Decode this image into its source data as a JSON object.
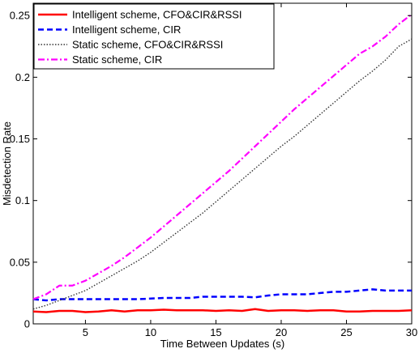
{
  "chart_data": {
    "type": "line",
    "xlabel": "Time Between Updates (s)",
    "ylabel": "Misdetection Rate",
    "xlim": [
      1,
      30
    ],
    "ylim": [
      0,
      0.26
    ],
    "xticks": [
      5,
      10,
      15,
      20,
      25,
      30
    ],
    "yticks": [
      0,
      0.05,
      0.1,
      0.15,
      0.2,
      0.25
    ],
    "xtick_labels": [
      "5",
      "10",
      "15",
      "20",
      "25",
      "30"
    ],
    "ytick_labels": [
      "0",
      "0.05",
      "0.1",
      "0.15",
      "0.2",
      "0.25"
    ],
    "grid": false,
    "legend_position": "top-left",
    "x": [
      1,
      2,
      3,
      4,
      5,
      6,
      7,
      8,
      9,
      10,
      11,
      12,
      13,
      14,
      15,
      16,
      17,
      18,
      19,
      20,
      21,
      22,
      23,
      24,
      25,
      26,
      27,
      28,
      29,
      30
    ],
    "series": [
      {
        "name": "Intelligent scheme, CFO&CIR&RSSI",
        "color": "#ff0000",
        "style": "solid",
        "values": [
          0.01,
          0.0095,
          0.0105,
          0.0105,
          0.0095,
          0.01,
          0.011,
          0.01,
          0.011,
          0.011,
          0.0115,
          0.011,
          0.011,
          0.011,
          0.0105,
          0.011,
          0.0105,
          0.012,
          0.0105,
          0.011,
          0.011,
          0.0105,
          0.011,
          0.011,
          0.01,
          0.01,
          0.0105,
          0.0105,
          0.0105,
          0.011
        ]
      },
      {
        "name": "Intelligent scheme, CIR",
        "color": "#0000ff",
        "style": "dashed",
        "values": [
          0.02,
          0.019,
          0.02,
          0.02,
          0.02,
          0.02,
          0.02,
          0.02,
          0.02,
          0.0205,
          0.021,
          0.021,
          0.021,
          0.022,
          0.022,
          0.022,
          0.022,
          0.0215,
          0.023,
          0.024,
          0.024,
          0.024,
          0.025,
          0.026,
          0.026,
          0.027,
          0.028,
          0.027,
          0.027,
          0.027
        ]
      },
      {
        "name": "Static scheme, CFO&CIR&RSSI",
        "color": "#333333",
        "style": "dotted",
        "values": [
          0.012,
          0.015,
          0.019,
          0.023,
          0.027,
          0.033,
          0.039,
          0.045,
          0.051,
          0.058,
          0.066,
          0.074,
          0.082,
          0.09,
          0.099,
          0.108,
          0.117,
          0.126,
          0.135,
          0.144,
          0.152,
          0.161,
          0.17,
          0.179,
          0.188,
          0.197,
          0.205,
          0.214,
          0.225,
          0.231
        ]
      },
      {
        "name": "Static scheme, CIR",
        "color": "#ff00ff",
        "style": "dashdot",
        "values": [
          0.02,
          0.024,
          0.031,
          0.031,
          0.035,
          0.041,
          0.047,
          0.054,
          0.062,
          0.07,
          0.079,
          0.088,
          0.097,
          0.106,
          0.115,
          0.124,
          0.134,
          0.144,
          0.154,
          0.164,
          0.174,
          0.183,
          0.192,
          0.201,
          0.21,
          0.219,
          0.225,
          0.233,
          0.243,
          0.251
        ]
      }
    ]
  }
}
